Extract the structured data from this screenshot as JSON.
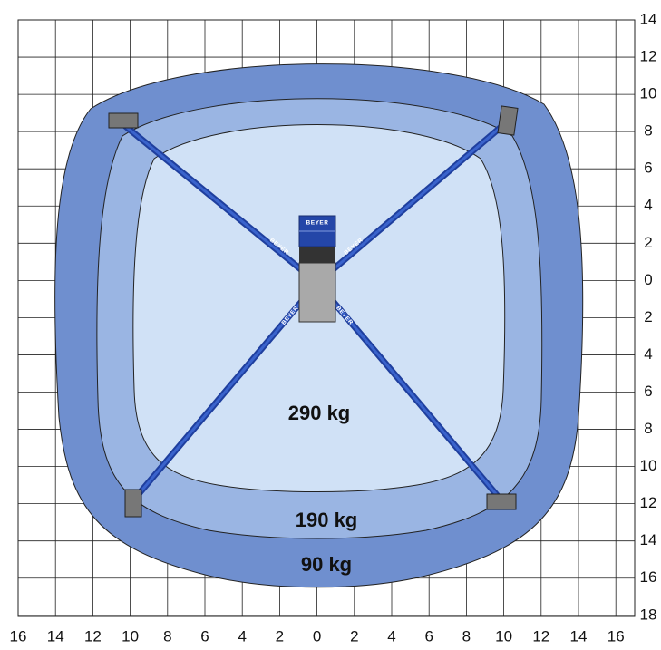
{
  "x_axis_labels": [
    "16",
    "14",
    "12",
    "10",
    "8",
    "6",
    "4",
    "2",
    "0",
    "2",
    "4",
    "6",
    "8",
    "10",
    "12",
    "14",
    "16"
  ],
  "y_axis_labels": [
    "14",
    "12",
    "10",
    "8",
    "6",
    "4",
    "2",
    "0",
    "2",
    "4",
    "6",
    "8",
    "10",
    "12",
    "14",
    "16",
    "18"
  ],
  "zones": [
    {
      "label": "290 kg"
    },
    {
      "label": "190 kg"
    },
    {
      "label": "90 kg"
    }
  ],
  "machine_labels": [
    "BEYER",
    "BEYER",
    "BEYER",
    "BEYER",
    "BEYER"
  ]
}
